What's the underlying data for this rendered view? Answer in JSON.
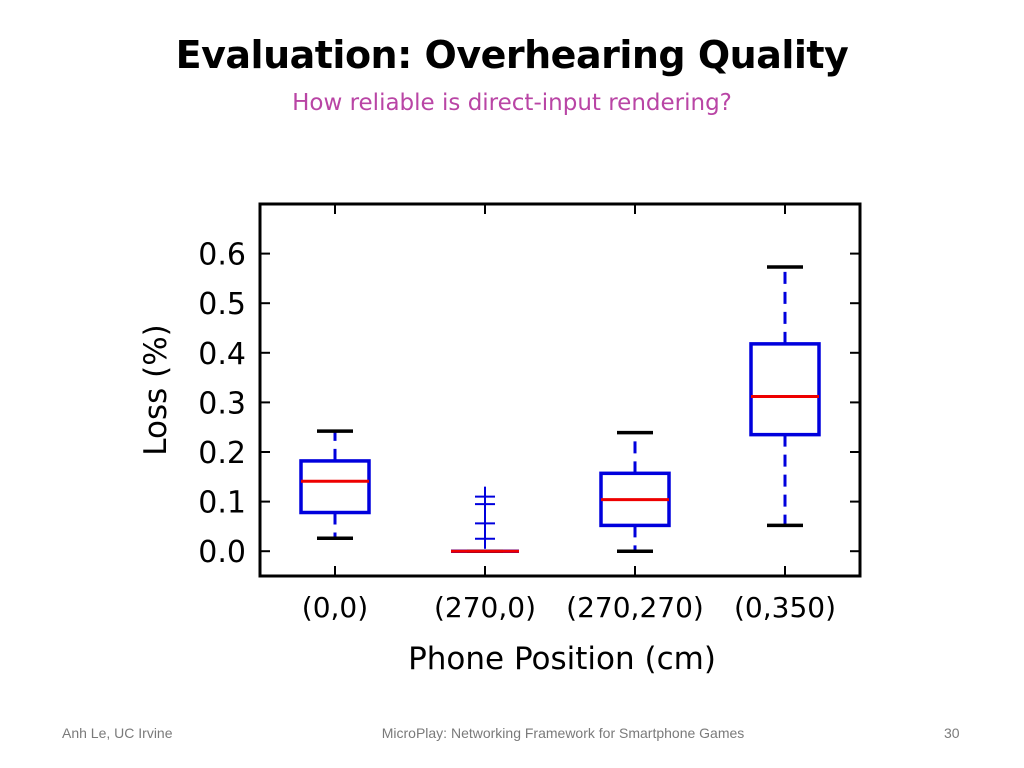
{
  "slide": {
    "title": "Evaluation: Overhearing Quality",
    "subtitle": "How reliable is direct-input rendering?"
  },
  "footer": {
    "left": "Anh Le, UC Irvine",
    "center": "MicroPlay: Networking Framework for Smartphone Games",
    "page_number": "30"
  },
  "colors": {
    "subtitle": "#b945a5",
    "box": "#0000dd",
    "median": "#ee0000",
    "whisker_cap": "#000000"
  },
  "chart_data": {
    "type": "box",
    "categories": [
      "(0,0)",
      "(270,0)",
      "(270,270)",
      "(0,350)"
    ],
    "boxes": [
      {
        "whisker_low": 0.026,
        "q1": 0.078,
        "median": 0.141,
        "q3": 0.182,
        "whisker_high": 0.242,
        "outliers": []
      },
      {
        "whisker_low": 0.0,
        "q1": 0.0,
        "median": 0.0,
        "q3": 0.0,
        "whisker_high": 0.0,
        "outliers": [
          0.025,
          0.056,
          0.095,
          0.11
        ]
      },
      {
        "whisker_low": 0.0,
        "q1": 0.052,
        "median": 0.104,
        "q3": 0.157,
        "whisker_high": 0.239,
        "outliers": []
      },
      {
        "whisker_low": 0.052,
        "q1": 0.235,
        "median": 0.312,
        "q3": 0.418,
        "whisker_high": 0.573,
        "outliers": []
      }
    ],
    "xlabel": "Phone Position (cm)",
    "ylabel": "Loss (%)",
    "ylim": [
      -0.05,
      0.7
    ],
    "yticks": [
      "0.0",
      "0.1",
      "0.2",
      "0.3",
      "0.4",
      "0.5",
      "0.6"
    ],
    "ytick_values": [
      0.0,
      0.1,
      0.2,
      0.3,
      0.4,
      0.5,
      0.6
    ],
    "grid": false,
    "legend": "none"
  }
}
